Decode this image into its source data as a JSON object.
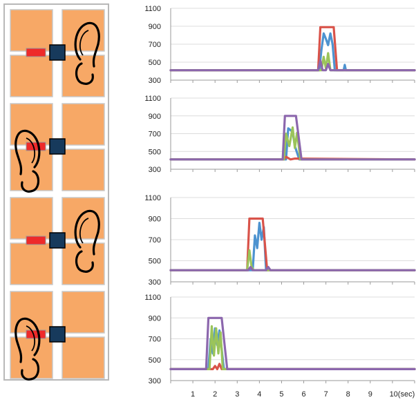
{
  "floor_panels": [
    {
      "foot": "right"
    },
    {
      "foot": "left"
    },
    {
      "foot": "right"
    },
    {
      "foot": "left"
    }
  ],
  "colors": {
    "tile": "#f7a866",
    "tile_border": "#c9c9c9",
    "led": "#ee2a2a",
    "sensor": "#173a5c",
    "panel_border": "#b8b8b8",
    "grid": "#dcdcdc",
    "series": [
      "#4d93d0",
      "#d9534a",
      "#9bc45a",
      "#8c67ad"
    ]
  },
  "chart_data": [
    {
      "type": "line",
      "ylim": [
        300,
        1100
      ],
      "yticks": [
        "1100",
        "900",
        "700",
        "500",
        "300"
      ],
      "xlim": [
        0,
        11
      ],
      "series": [
        {
          "color": "#4d93d0",
          "x": [
            0,
            6.7,
            6.8,
            6.9,
            7.0,
            7.1,
            7.2,
            7.3,
            7.4,
            7.8,
            7.85,
            7.9,
            11
          ],
          "y": [
            410,
            410,
            640,
            820,
            760,
            690,
            820,
            700,
            410,
            410,
            470,
            410,
            410
          ]
        },
        {
          "color": "#d9534a",
          "x": [
            0,
            6.65,
            6.75,
            7.35,
            7.5,
            11
          ],
          "y": [
            410,
            410,
            890,
            890,
            410,
            410
          ]
        },
        {
          "color": "#9bc45a",
          "x": [
            0,
            6.8,
            6.9,
            7.0,
            7.1,
            7.2,
            11
          ],
          "y": [
            410,
            410,
            560,
            430,
            600,
            410,
            410
          ]
        },
        {
          "color": "#8c67ad",
          "x": [
            0,
            6.65,
            6.75,
            6.85,
            7.0,
            7.1,
            7.2,
            11
          ],
          "y": [
            410,
            410,
            520,
            410,
            410,
            480,
            410,
            410
          ]
        }
      ]
    },
    {
      "type": "line",
      "ylim": [
        300,
        1100
      ],
      "yticks": [
        "1100",
        "900",
        "700",
        "500",
        "300"
      ],
      "xlim": [
        0,
        11
      ],
      "series": [
        {
          "color": "#4d93d0",
          "x": [
            0,
            5.2,
            5.3,
            5.5,
            5.6,
            5.8,
            11
          ],
          "y": [
            410,
            410,
            760,
            720,
            560,
            410,
            410
          ]
        },
        {
          "color": "#d9534a",
          "x": [
            0,
            5.1,
            5.2,
            5.4,
            5.6,
            11
          ],
          "y": [
            410,
            410,
            440,
            410,
            420,
            410
          ]
        },
        {
          "color": "#9bc45a",
          "x": [
            0,
            5.1,
            5.2,
            5.35,
            5.5,
            5.6,
            5.7,
            5.85,
            11
          ],
          "y": [
            410,
            410,
            700,
            560,
            770,
            540,
            710,
            410,
            410
          ]
        },
        {
          "color": "#8c67ad",
          "x": [
            0,
            5.05,
            5.15,
            5.65,
            5.9,
            11
          ],
          "y": [
            410,
            410,
            900,
            900,
            410,
            410
          ]
        }
      ]
    },
    {
      "type": "line",
      "ylim": [
        300,
        1100
      ],
      "yticks": [
        "1100",
        "900",
        "700",
        "500",
        "300"
      ],
      "xlim": [
        0,
        11
      ],
      "series": [
        {
          "color": "#4d93d0",
          "x": [
            0,
            3.7,
            3.8,
            3.9,
            4.0,
            4.1,
            4.2,
            4.3,
            11
          ],
          "y": [
            410,
            410,
            740,
            620,
            860,
            700,
            820,
            410,
            410
          ]
        },
        {
          "color": "#d9534a",
          "x": [
            0,
            3.45,
            3.55,
            4.15,
            4.35,
            11
          ],
          "y": [
            410,
            410,
            900,
            900,
            410,
            410
          ]
        },
        {
          "color": "#9bc45a",
          "x": [
            0,
            3.45,
            3.55,
            3.65,
            3.75,
            11
          ],
          "y": [
            410,
            410,
            600,
            440,
            410,
            410
          ]
        },
        {
          "color": "#8c67ad",
          "x": [
            0,
            3.5,
            3.6,
            3.7,
            4.3,
            4.4,
            4.5,
            11
          ],
          "y": [
            410,
            410,
            440,
            410,
            410,
            440,
            410,
            410
          ]
        }
      ]
    },
    {
      "type": "line",
      "ylim": [
        300,
        1100
      ],
      "yticks": [
        "1100",
        "900",
        "700",
        "500",
        "300"
      ],
      "xlim": [
        0,
        11
      ],
      "series": [
        {
          "color": "#4d93d0",
          "x": [
            0,
            1.7,
            1.8,
            1.9,
            2.0,
            2.1,
            2.2,
            2.3,
            2.4,
            11
          ],
          "y": [
            410,
            410,
            700,
            560,
            800,
            640,
            780,
            600,
            410,
            410
          ]
        },
        {
          "color": "#d9534a",
          "x": [
            0,
            1.9,
            2.0,
            2.1,
            2.2,
            2.3,
            11
          ],
          "y": [
            410,
            410,
            440,
            410,
            460,
            410,
            410
          ]
        },
        {
          "color": "#9bc45a",
          "x": [
            0,
            1.75,
            1.85,
            1.95,
            2.05,
            2.15,
            2.25,
            2.35,
            11
          ],
          "y": [
            410,
            410,
            820,
            540,
            800,
            560,
            760,
            410,
            410
          ]
        },
        {
          "color": "#8c67ad",
          "x": [
            0,
            1.6,
            1.7,
            2.3,
            2.55,
            11
          ],
          "y": [
            410,
            410,
            900,
            900,
            410,
            410
          ]
        }
      ]
    }
  ],
  "x_axis": {
    "ticks": [
      "1",
      "2",
      "3",
      "4",
      "5",
      "6",
      "7",
      "8",
      "9",
      "10(sec)"
    ],
    "tick_values": [
      1,
      2,
      3,
      4,
      5,
      6,
      7,
      8,
      9,
      10
    ]
  }
}
